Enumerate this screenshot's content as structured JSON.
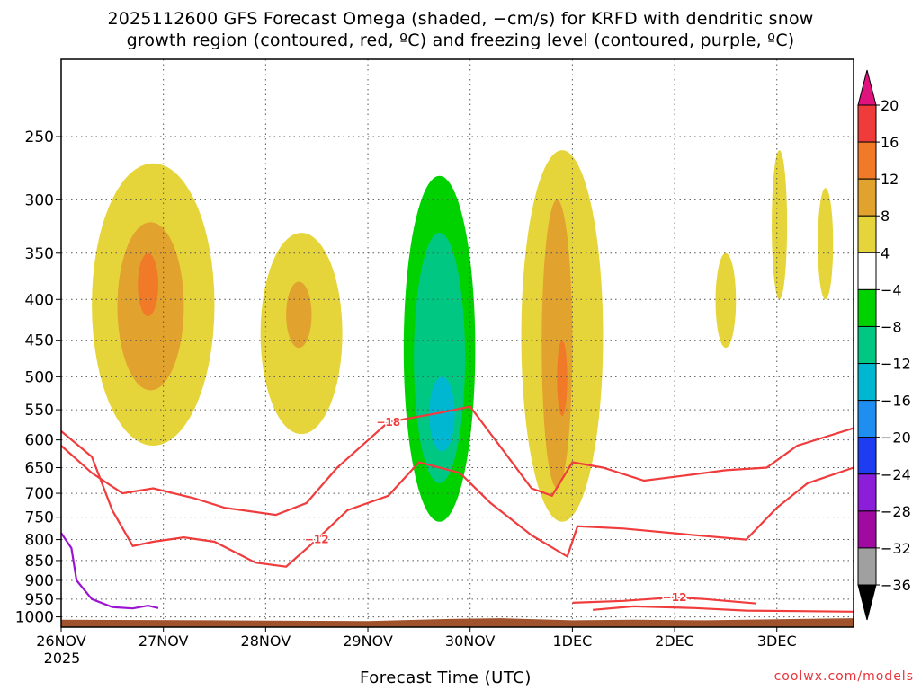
{
  "title_line1": "2025112600 GFS Forecast Omega (shaded, −cm/s) for KRFD with dendritic snow",
  "title_line2": "growth region (contoured, red, ºC) and freezing level (contoured, purple, ºC)",
  "credit": "coolwx.com/models",
  "chart_data": {
    "type": "heatmap",
    "title": "2025112600 GFS Forecast Omega (shaded, −cm/s) for KRFD with dendritic snow growth region (contoured, red, ºC) and freezing level (contoured, purple, ºC)",
    "xlabel": "Forecast Time (UTC)",
    "x_ticks": [
      "26NOV",
      "27NOV",
      "28NOV",
      "29NOV",
      "30NOV",
      "1DEC",
      "2DEC",
      "3DEC"
    ],
    "x_year_label": "2025",
    "x_range_days": [
      0,
      7.75
    ],
    "y_ticks": [
      "250",
      "300",
      "350",
      "400",
      "450",
      "500",
      "550",
      "600",
      "650",
      "700",
      "750",
      "800",
      "850",
      "900",
      "950",
      "1000"
    ],
    "y_values_hpa": [
      250,
      300,
      350,
      400,
      450,
      500,
      550,
      600,
      650,
      700,
      750,
      800,
      850,
      900,
      950,
      1000
    ],
    "y_range_hpa": [
      200,
      1030
    ],
    "colorbar": {
      "labels": [
        "20",
        "16",
        "12",
        "8",
        "4",
        "−4",
        "−8",
        "−12",
        "−16",
        "−20",
        "−24",
        "−28",
        "−32",
        "−36"
      ],
      "bins": [
        {
          "from": 16,
          "to": 20,
          "color": "#f03b3b"
        },
        {
          "from": 12,
          "to": 16,
          "color": "#f07a28"
        },
        {
          "from": 8,
          "to": 12,
          "color": "#e2a22e"
        },
        {
          "from": 4,
          "to": 8,
          "color": "#e6d53a"
        },
        {
          "from": -4,
          "to": 4,
          "color": "#ffffff"
        },
        {
          "from": -8,
          "to": -4,
          "color": "#00d200"
        },
        {
          "from": -12,
          "to": -8,
          "color": "#00c883"
        },
        {
          "from": -16,
          "to": -12,
          "color": "#00b7d2"
        },
        {
          "from": -20,
          "to": -16,
          "color": "#1e8ef0"
        },
        {
          "from": -24,
          "to": -20,
          "color": "#1e3cf0"
        },
        {
          "from": -28,
          "to": -24,
          "color": "#8c1eda"
        },
        {
          "from": -32,
          "to": -28,
          "color": "#a00aa0"
        },
        {
          "from": -36,
          "to": -32,
          "color": "#a0a0a0"
        }
      ],
      "over_color": "#e0127e",
      "under_color": "#000000"
    },
    "omega_regions": [
      {
        "value": 4,
        "t": [
          0.3,
          1.5
        ],
        "p": [
          270,
          610
        ]
      },
      {
        "value": 8,
        "t": [
          0.55,
          1.2
        ],
        "p": [
          320,
          520
        ]
      },
      {
        "value": 12,
        "t": [
          0.75,
          0.95
        ],
        "p": [
          350,
          420
        ]
      },
      {
        "value": 4,
        "t": [
          1.95,
          2.75
        ],
        "p": [
          330,
          590
        ]
      },
      {
        "value": 8,
        "t": [
          2.2,
          2.45
        ],
        "p": [
          380,
          460
        ]
      },
      {
        "value": 4,
        "t": [
          4.5,
          5.3
        ],
        "p": [
          260,
          760
        ]
      },
      {
        "value": 8,
        "t": [
          4.7,
          5.0
        ],
        "p": [
          300,
          690
        ]
      },
      {
        "value": 12,
        "t": [
          4.85,
          4.95
        ],
        "p": [
          450,
          560
        ]
      },
      {
        "value": -4,
        "t": [
          3.1,
          4.35
        ],
        "p": [
          200,
          910
        ]
      },
      {
        "value": -8,
        "t": [
          3.35,
          4.05
        ],
        "p": [
          280,
          760
        ]
      },
      {
        "value": -12,
        "t": [
          3.45,
          3.95
        ],
        "p": [
          330,
          680
        ]
      },
      {
        "value": -16,
        "t": [
          3.6,
          3.85
        ],
        "p": [
          500,
          620
        ]
      },
      {
        "value": 4,
        "t": [
          6.4,
          6.6
        ],
        "p": [
          350,
          460
        ]
      },
      {
        "value": 4,
        "t": [
          6.95,
          7.1
        ],
        "p": [
          260,
          400
        ]
      },
      {
        "value": 4,
        "t": [
          7.4,
          7.55
        ],
        "p": [
          290,
          400
        ]
      }
    ],
    "red_contours": [
      {
        "label": "−18",
        "points": [
          [
            0.0,
            610
          ],
          [
            0.3,
            660
          ],
          [
            0.6,
            700
          ],
          [
            0.9,
            690
          ],
          [
            1.3,
            710
          ],
          [
            1.6,
            730
          ],
          [
            2.1,
            745
          ],
          [
            2.4,
            720
          ],
          [
            2.7,
            650
          ],
          [
            3.2,
            570
          ],
          [
            3.7,
            555
          ],
          [
            4.0,
            545
          ],
          [
            4.35,
            625
          ],
          [
            4.6,
            690
          ],
          [
            4.8,
            705
          ],
          [
            5.0,
            640
          ],
          [
            5.3,
            650
          ],
          [
            5.7,
            675
          ],
          [
            6.1,
            665
          ],
          [
            6.5,
            655
          ],
          [
            6.9,
            650
          ],
          [
            7.2,
            610
          ],
          [
            7.75,
            580
          ]
        ]
      },
      {
        "label": "−12",
        "points": [
          [
            0.0,
            585
          ],
          [
            0.3,
            630
          ],
          [
            0.5,
            735
          ],
          [
            0.7,
            815
          ],
          [
            0.9,
            805
          ],
          [
            1.2,
            795
          ],
          [
            1.5,
            805
          ],
          [
            1.9,
            855
          ],
          [
            2.2,
            865
          ],
          [
            2.5,
            800
          ],
          [
            2.8,
            735
          ],
          [
            3.2,
            705
          ],
          [
            3.5,
            640
          ],
          [
            3.9,
            660
          ],
          [
            4.2,
            720
          ],
          [
            4.6,
            790
          ],
          [
            4.95,
            840
          ],
          [
            5.05,
            770
          ],
          [
            5.5,
            775
          ],
          [
            6.2,
            790
          ],
          [
            6.7,
            800
          ],
          [
            7.0,
            730
          ],
          [
            7.3,
            680
          ],
          [
            7.75,
            650
          ]
        ]
      },
      {
        "label": "−12",
        "points": [
          [
            5.0,
            960
          ],
          [
            5.5,
            955
          ],
          [
            6.0,
            945
          ],
          [
            6.3,
            950
          ],
          [
            6.8,
            962
          ]
        ]
      },
      {
        "label": "",
        "points": [
          [
            5.2,
            980
          ],
          [
            5.6,
            970
          ],
          [
            6.2,
            975
          ],
          [
            6.7,
            982
          ],
          [
            7.75,
            985
          ]
        ]
      }
    ],
    "purple_contours": [
      {
        "label": "",
        "points": [
          [
            0.0,
            785
          ],
          [
            0.1,
            820
          ],
          [
            0.15,
            900
          ],
          [
            0.3,
            950
          ],
          [
            0.5,
            972
          ],
          [
            0.7,
            976
          ],
          [
            0.85,
            968
          ],
          [
            0.95,
            975
          ]
        ]
      }
    ],
    "ground": {
      "color": "#a0522d",
      "surface_hpa": [
        [
          0.0,
          1008
        ],
        [
          1.5,
          1010
        ],
        [
          3.0,
          1012
        ],
        [
          3.8,
          1006
        ],
        [
          4.3,
          1004
        ],
        [
          5.0,
          1010
        ],
        [
          5.6,
          1008
        ],
        [
          6.3,
          1010
        ],
        [
          7.75,
          1004
        ]
      ]
    }
  }
}
